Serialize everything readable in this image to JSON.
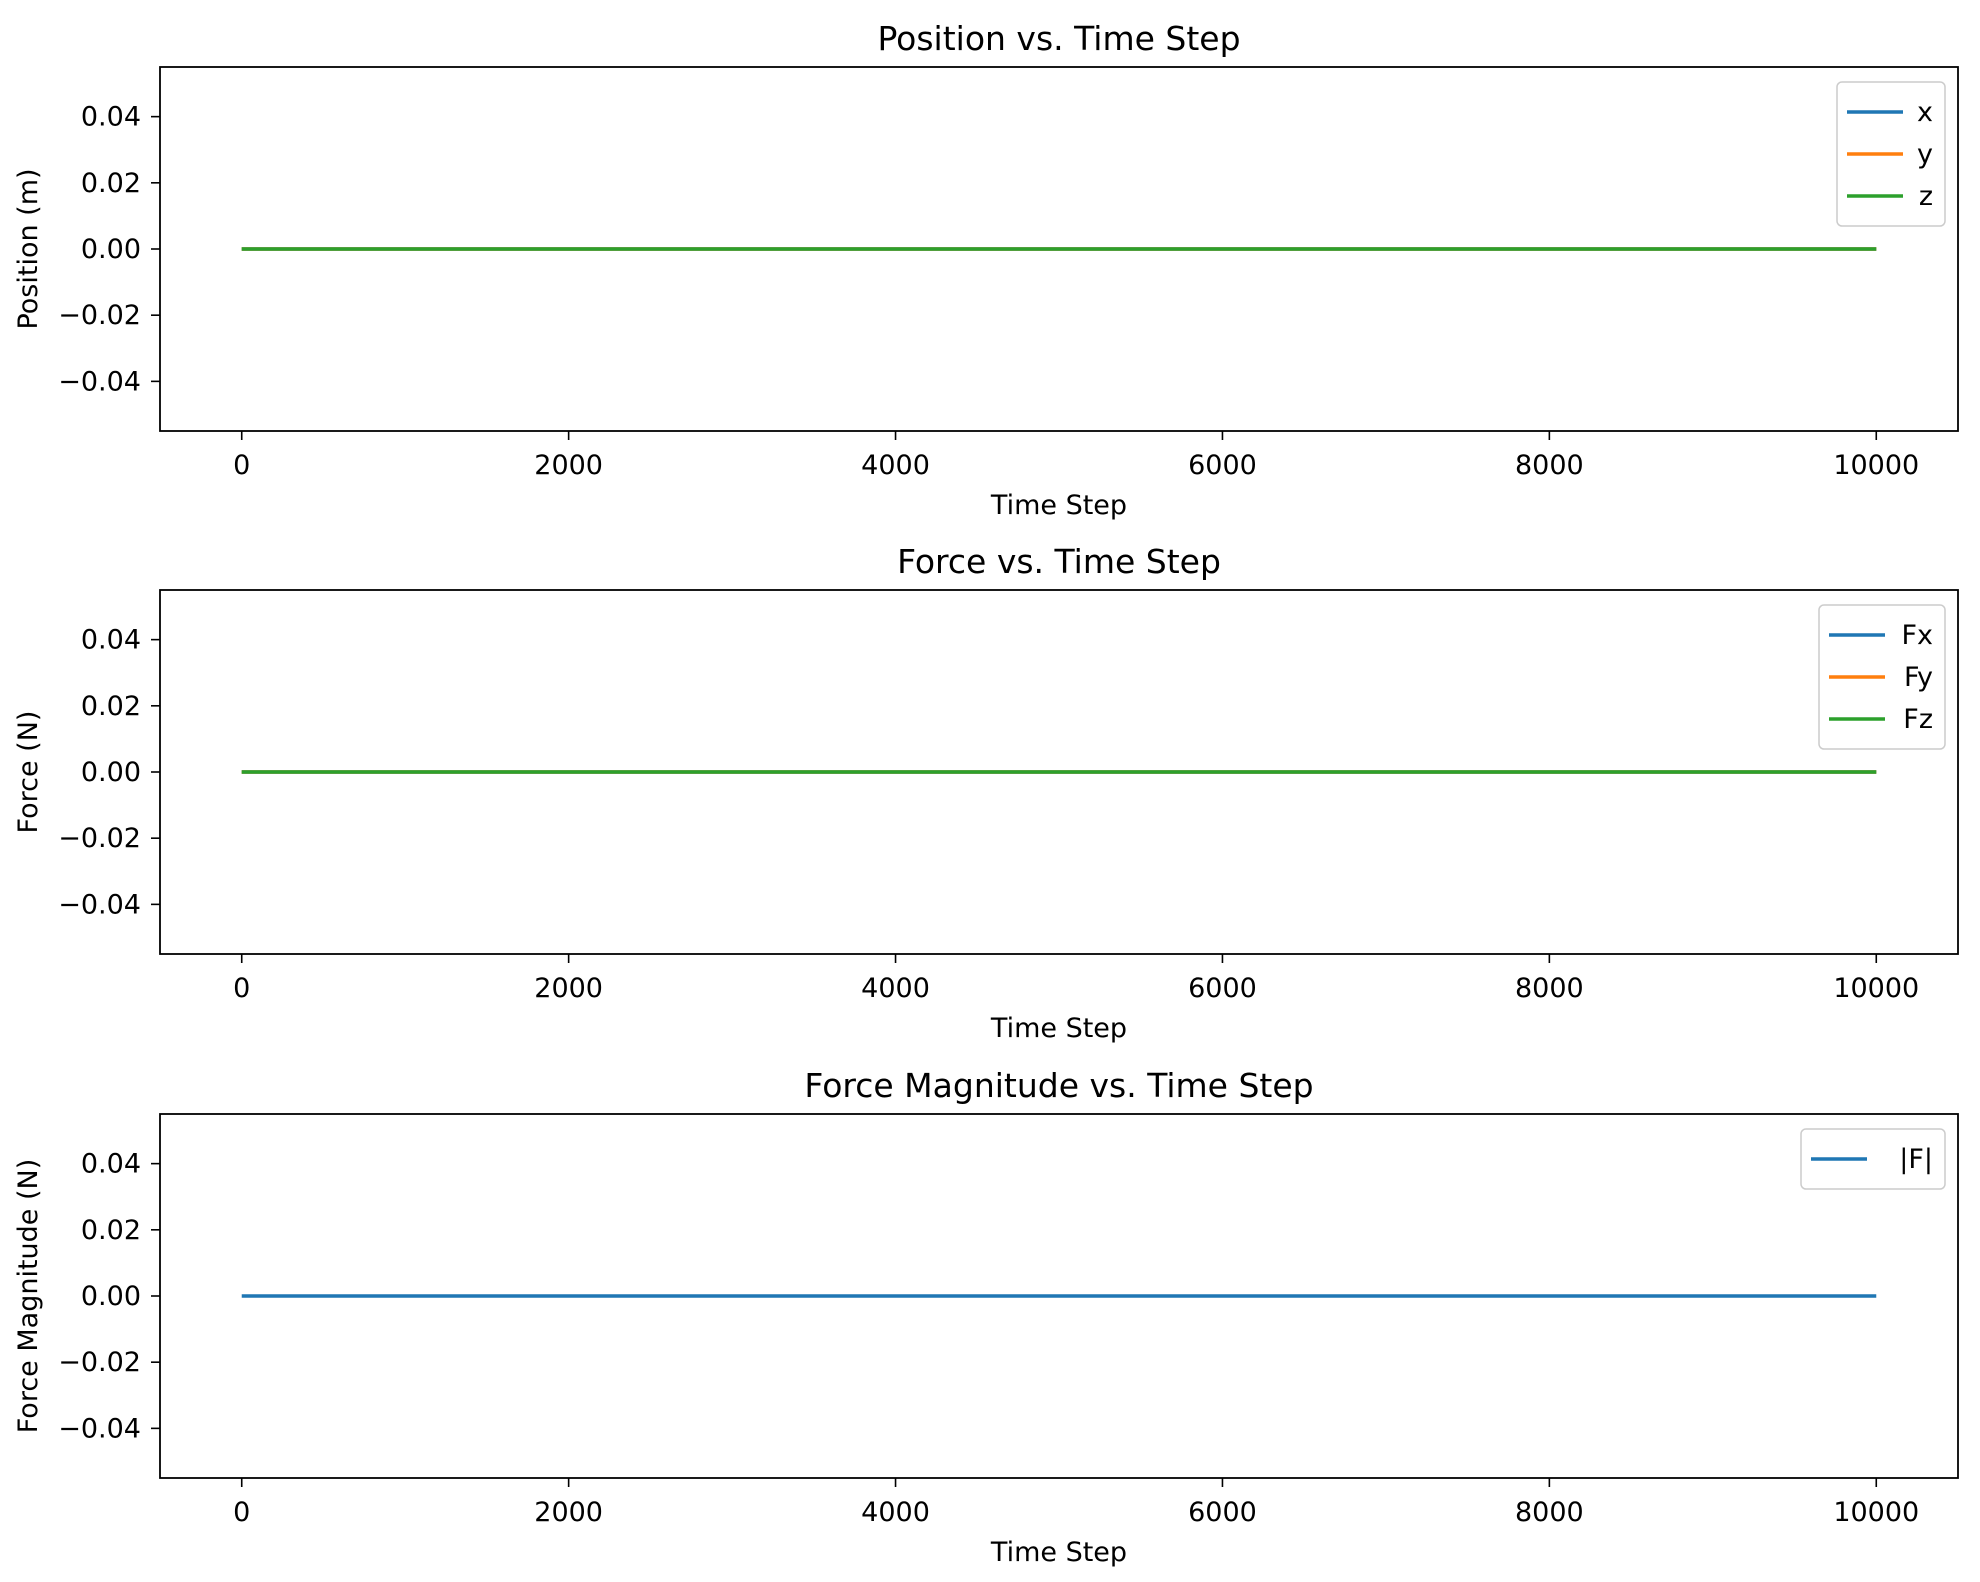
{
  "chart_data": [
    {
      "type": "line",
      "title": "Position vs. Time Step",
      "xlabel": "Time Step",
      "ylabel": "Position (m)",
      "xlim": [
        -500,
        10500
      ],
      "ylim": [
        -0.055,
        0.055
      ],
      "xticks": [
        0,
        2000,
        4000,
        6000,
        8000,
        10000
      ],
      "xtick_labels": [
        "0",
        "2000",
        "4000",
        "6000",
        "8000",
        "10000"
      ],
      "yticks": [
        0.04,
        0.02,
        0.0,
        -0.02,
        -0.04
      ],
      "ytick_labels": [
        "0.04",
        "0.02",
        "0.00",
        "−0.02",
        "−0.04"
      ],
      "grid": false,
      "legend_position": "top-right",
      "x": [
        0,
        10000
      ],
      "series": [
        {
          "name": "x",
          "color": "#1f77b4",
          "values": [
            0,
            0
          ]
        },
        {
          "name": "y",
          "color": "#ff7f0e",
          "values": [
            0,
            0
          ]
        },
        {
          "name": "z",
          "color": "#2ca02c",
          "values": [
            0,
            0
          ]
        }
      ]
    },
    {
      "type": "line",
      "title": "Force vs. Time Step",
      "xlabel": "Time Step",
      "ylabel": "Force (N)",
      "xlim": [
        -500,
        10500
      ],
      "ylim": [
        -0.055,
        0.055
      ],
      "xticks": [
        0,
        2000,
        4000,
        6000,
        8000,
        10000
      ],
      "xtick_labels": [
        "0",
        "2000",
        "4000",
        "6000",
        "8000",
        "10000"
      ],
      "yticks": [
        0.04,
        0.02,
        0.0,
        -0.02,
        -0.04
      ],
      "ytick_labels": [
        "0.04",
        "0.02",
        "0.00",
        "−0.02",
        "−0.04"
      ],
      "grid": false,
      "legend_position": "top-right",
      "x": [
        0,
        10000
      ],
      "series": [
        {
          "name": "Fx",
          "color": "#1f77b4",
          "values": [
            0,
            0
          ]
        },
        {
          "name": "Fy",
          "color": "#ff7f0e",
          "values": [
            0,
            0
          ]
        },
        {
          "name": "Fz",
          "color": "#2ca02c",
          "values": [
            0,
            0
          ]
        }
      ]
    },
    {
      "type": "line",
      "title": "Force Magnitude vs. Time Step",
      "xlabel": "Time Step",
      "ylabel": "Force Magnitude (N)",
      "xlim": [
        -500,
        10500
      ],
      "ylim": [
        -0.055,
        0.055
      ],
      "xticks": [
        0,
        2000,
        4000,
        6000,
        8000,
        10000
      ],
      "xtick_labels": [
        "0",
        "2000",
        "4000",
        "6000",
        "8000",
        "10000"
      ],
      "yticks": [
        0.04,
        0.02,
        0.0,
        -0.02,
        -0.04
      ],
      "ytick_labels": [
        "0.04",
        "0.02",
        "0.00",
        "−0.02",
        "−0.04"
      ],
      "grid": false,
      "legend_position": "top-right",
      "x": [
        0,
        10000
      ],
      "series": [
        {
          "name": "|F|",
          "color": "#1f77b4",
          "values": [
            0,
            0
          ]
        }
      ]
    }
  ]
}
